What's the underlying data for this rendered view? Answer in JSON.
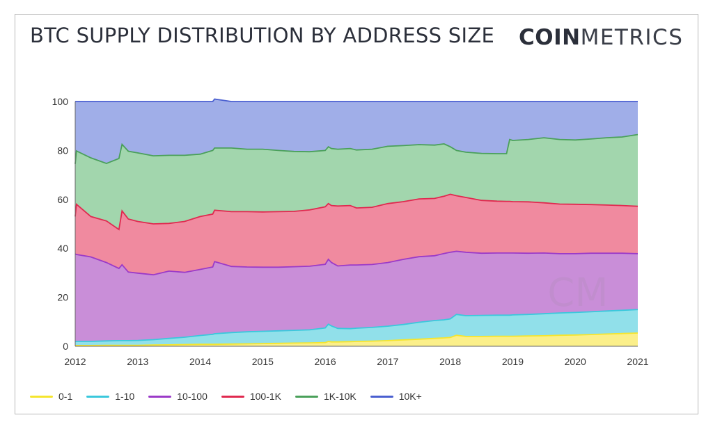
{
  "header": {
    "title": "BTC SUPPLY DISTRIBUTION BY ADDRESS SIZE",
    "logo_bold": "COIN",
    "logo_light": "METRICS",
    "watermark": "CM"
  },
  "chart_data": {
    "type": "area",
    "stacked": true,
    "title": "BTC SUPPLY DISTRIBUTION BY ADDRESS SIZE",
    "xlabel": "",
    "ylabel": "",
    "xlim": [
      2012.0,
      2021.0
    ],
    "ylim": [
      0,
      100
    ],
    "x_ticks": [
      "2012",
      "2013",
      "2014",
      "2015",
      "2016",
      "2017",
      "2018",
      "2019",
      "2020",
      "2021"
    ],
    "y_ticks": [
      "0",
      "20",
      "40",
      "60",
      "80",
      "100"
    ],
    "grid": false,
    "legend_position": "bottom-left",
    "x": [
      2012.0,
      2012.02,
      2012.25,
      2012.5,
      2012.7,
      2012.75,
      2012.85,
      2013.0,
      2013.25,
      2013.5,
      2013.75,
      2014.0,
      2014.2,
      2014.23,
      2014.5,
      2014.75,
      2015.0,
      2015.25,
      2015.5,
      2015.75,
      2016.0,
      2016.05,
      2016.1,
      2016.2,
      2016.4,
      2016.5,
      2016.75,
      2017.0,
      2017.25,
      2017.5,
      2017.75,
      2017.9,
      2018.0,
      2018.1,
      2018.25,
      2018.5,
      2018.75,
      2018.9,
      2018.95,
      2019.0,
      2019.25,
      2019.5,
      2019.75,
      2020.0,
      2020.25,
      2020.5,
      2020.75,
      2021.0
    ],
    "series": [
      {
        "name": "0-1",
        "color": "#f5e52d",
        "fill": "#fbef8a",
        "values": [
          0.3,
          0.3,
          0.3,
          0.4,
          0.4,
          0.4,
          0.4,
          0.4,
          0.5,
          0.6,
          0.7,
          0.8,
          0.8,
          0.8,
          0.9,
          1.0,
          1.1,
          1.2,
          1.3,
          1.4,
          1.5,
          2.0,
          1.8,
          1.8,
          1.9,
          2.0,
          2.1,
          2.3,
          2.6,
          2.9,
          3.2,
          3.4,
          3.6,
          4.5,
          4.0,
          4.0,
          4.1,
          4.1,
          4.1,
          4.1,
          4.2,
          4.3,
          4.5,
          4.6,
          4.8,
          5.0,
          5.2,
          5.4
        ]
      },
      {
        "name": "1-10",
        "color": "#3ac8dc",
        "fill": "#91e0ea",
        "values": [
          1.6,
          1.7,
          1.7,
          1.8,
          1.9,
          1.9,
          1.9,
          2.0,
          2.2,
          2.6,
          3.0,
          3.6,
          4.1,
          4.3,
          4.7,
          4.9,
          5.0,
          5.1,
          5.2,
          5.3,
          6.0,
          7.0,
          6.5,
          5.5,
          5.3,
          5.4,
          5.6,
          5.9,
          6.3,
          6.9,
          7.3,
          7.4,
          7.6,
          8.5,
          8.5,
          8.6,
          8.6,
          8.6,
          8.6,
          8.7,
          8.8,
          9.0,
          9.1,
          9.2,
          9.3,
          9.4,
          9.5,
          9.6
        ]
      },
      {
        "name": "10-100",
        "color": "#9b3ac8",
        "fill": "#c98ed8",
        "values": [
          35.8,
          35.5,
          34.5,
          32.0,
          29.5,
          31.0,
          28.0,
          27.5,
          26.5,
          27.5,
          26.5,
          27.0,
          27.5,
          29.5,
          27.0,
          26.5,
          26.2,
          26.0,
          26.0,
          26.0,
          26.0,
          26.5,
          25.9,
          25.5,
          26.0,
          25.8,
          25.7,
          26.0,
          26.6,
          26.8,
          26.5,
          27.1,
          27.2,
          25.8,
          25.9,
          25.4,
          25.4,
          25.4,
          25.4,
          25.3,
          25.0,
          24.8,
          24.2,
          24.0,
          23.9,
          23.6,
          23.3,
          22.8
        ]
      },
      {
        "name": "100-1K",
        "color": "#e0294f",
        "fill": "#f08a9f",
        "values": [
          15.3,
          20.5,
          16.5,
          17.0,
          15.9,
          22.0,
          21.7,
          21.1,
          20.8,
          19.5,
          20.8,
          21.6,
          21.6,
          21.0,
          22.4,
          22.6,
          22.6,
          22.7,
          22.6,
          23.0,
          23.5,
          22.8,
          23.3,
          24.5,
          24.3,
          23.3,
          23.4,
          24.1,
          23.6,
          23.6,
          23.4,
          23.4,
          23.7,
          22.7,
          22.4,
          21.6,
          21.2,
          21.1,
          21.1,
          21.0,
          21.0,
          20.5,
          20.3,
          20.2,
          19.9,
          19.7,
          19.5,
          19.4
        ]
      },
      {
        "name": "1K-10K",
        "color": "#4aa05a",
        "fill": "#a2d6ad",
        "values": [
          21.5,
          21.8,
          24.0,
          23.5,
          29.0,
          27.2,
          27.7,
          28.0,
          27.8,
          27.8,
          27.0,
          25.5,
          26.0,
          25.4,
          26.0,
          25.5,
          25.6,
          25.0,
          24.5,
          23.8,
          23.0,
          23.2,
          23.3,
          23.2,
          23.3,
          23.7,
          23.7,
          23.4,
          22.9,
          22.2,
          21.8,
          21.4,
          19.4,
          18.5,
          18.5,
          19.2,
          19.4,
          19.5,
          25.3,
          25.0,
          25.5,
          26.6,
          26.4,
          26.3,
          26.8,
          27.5,
          28.0,
          29.3
        ]
      },
      {
        "name": "10K+",
        "color": "#4a5fd0",
        "fill": "#a0aee8",
        "values": [
          25.5,
          20.2,
          23.0,
          25.3,
          23.3,
          17.5,
          20.3,
          21.0,
          22.2,
          22.0,
          22.0,
          21.5,
          20.0,
          20.0,
          19.0,
          19.5,
          19.5,
          20.0,
          20.4,
          20.5,
          20.0,
          18.5,
          19.2,
          19.5,
          19.2,
          19.8,
          19.5,
          18.3,
          18.0,
          17.6,
          17.8,
          17.3,
          18.5,
          20.0,
          20.7,
          21.2,
          21.3,
          21.3,
          15.5,
          15.9,
          15.5,
          14.8,
          15.5,
          15.7,
          15.3,
          14.8,
          14.5,
          13.5
        ]
      }
    ]
  }
}
